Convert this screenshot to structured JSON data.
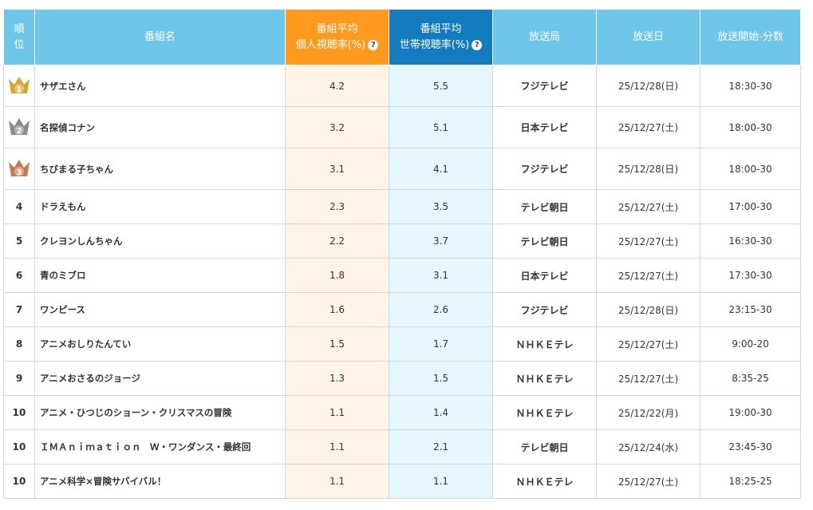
{
  "table": {
    "header": {
      "rank": [
        "順",
        "位"
      ],
      "name": "番組名",
      "personal": [
        "番組平均",
        "個人視聴率(%)"
      ],
      "household": [
        "番組平均",
        "世帯視聴率(%)"
      ],
      "station": "放送局",
      "date": "放送日",
      "time": "放送開始-分数",
      "help": "?"
    },
    "rows": [
      [
        "1",
        "サザエさん",
        "4.2",
        "5.5",
        "フジテレビ",
        "25/12/28(日)",
        "18:30-30"
      ],
      [
        "2",
        "名探偵コナン",
        "3.2",
        "5.1",
        "日本テレビ",
        "25/12/27(土)",
        "18:00-30"
      ],
      [
        "3",
        "ちびまる子ちゃん",
        "3.1",
        "4.1",
        "フジテレビ",
        "25/12/28(日)",
        "18:00-30"
      ],
      [
        "4",
        "ドラえもん",
        "2.3",
        "3.5",
        "テレビ朝日",
        "25/12/27(土)",
        "17:00-30"
      ],
      [
        "5",
        "クレヨンしんちゃん",
        "2.2",
        "3.7",
        "テレビ朝日",
        "25/12/27(土)",
        "16:30-30"
      ],
      [
        "6",
        "青のミブロ",
        "1.8",
        "3.1",
        "日本テレビ",
        "25/12/27(土)",
        "17:30-30"
      ],
      [
        "7",
        "ワンピース",
        "1.6",
        "2.6",
        "フジテレビ",
        "25/12/28(日)",
        "23:15-30"
      ],
      [
        "8",
        "アニメおしりたんてい",
        "1.5",
        "1.7",
        "ＮＨＫＥテレ",
        "25/12/27(土)",
        "9:00-20"
      ],
      [
        "9",
        "アニメおさるのジョージ",
        "1.3",
        "1.5",
        "ＮＨＫＥテレ",
        "25/12/27(土)",
        "8:35-25"
      ],
      [
        "10",
        "アニメ・ひつじのショーン・クリスマスの冒険",
        "1.1",
        "1.4",
        "ＮＨＫＥテレ",
        "25/12/22(月)",
        "19:00-30"
      ],
      [
        "10",
        "ＩＭＡｎｉｍａｔｉｏｎ　Ｗ・ワンダンス・最終回",
        "1.1",
        "2.1",
        "テレビ朝日",
        "25/12/24(水)",
        "23:45-30"
      ],
      [
        "10",
        "アニメ科学×冒険サバイバル！",
        "1.1",
        "1.1",
        "ＮＨＫＥテレ",
        "25/12/27(土)",
        "18:25-25"
      ]
    ]
  }
}
